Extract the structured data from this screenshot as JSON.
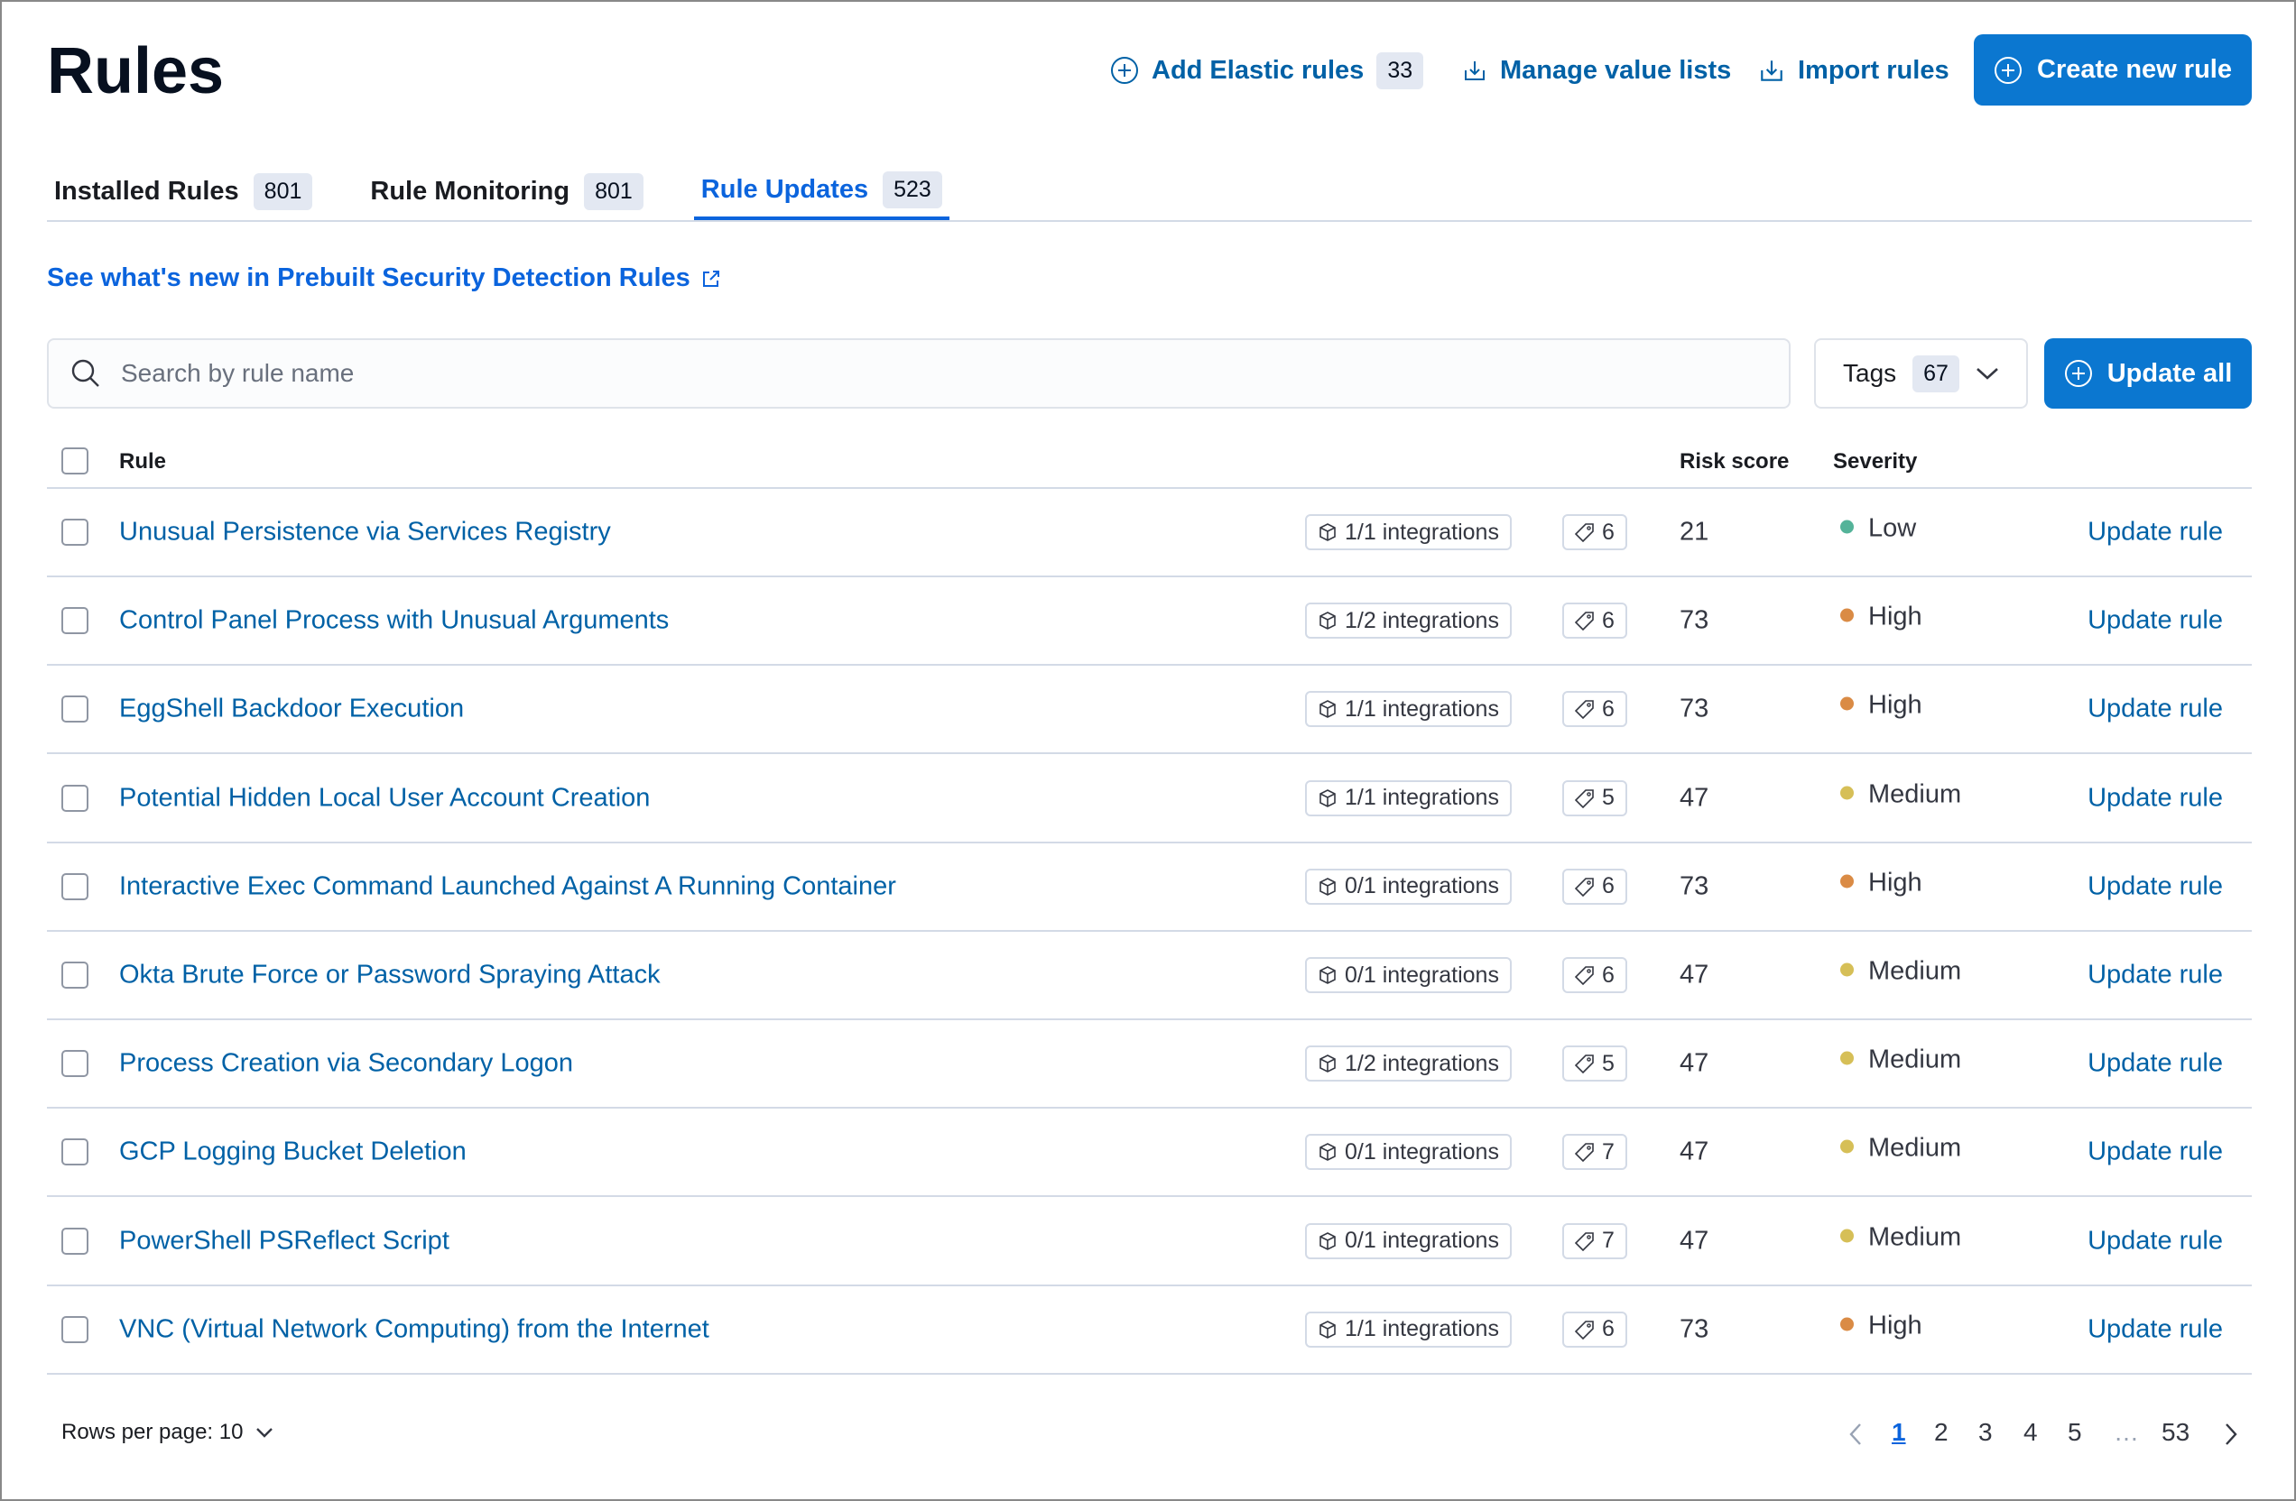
{
  "page_title": "Rules",
  "header": {
    "add_elastic_rules": "Add Elastic rules",
    "add_elastic_rules_count": "33",
    "manage_value_lists": "Manage value lists",
    "import_rules": "Import rules",
    "create_new_rule": "Create new rule"
  },
  "tabs": [
    {
      "label": "Installed Rules",
      "count": "801"
    },
    {
      "label": "Rule Monitoring",
      "count": "801"
    },
    {
      "label": "Rule Updates",
      "count": "523",
      "active": true
    }
  ],
  "whats_new_link": "See what's new in Prebuilt Security Detection Rules",
  "search": {
    "placeholder": "Search by rule name",
    "value": ""
  },
  "tags_filter": {
    "label": "Tags",
    "count": "67"
  },
  "update_all": "Update all",
  "table": {
    "columns": {
      "rule": "Rule",
      "risk_score": "Risk score",
      "severity": "Severity"
    },
    "rows": [
      {
        "name": "Unusual Persistence via Services Registry",
        "integrations": "1/1 integrations",
        "tags": "6",
        "risk": "21",
        "severity": "Low",
        "action": "Update rule"
      },
      {
        "name": "Control Panel Process with Unusual Arguments",
        "integrations": "1/2 integrations",
        "tags": "6",
        "risk": "73",
        "severity": "High",
        "action": "Update rule"
      },
      {
        "name": "EggShell Backdoor Execution",
        "integrations": "1/1 integrations",
        "tags": "6",
        "risk": "73",
        "severity": "High",
        "action": "Update rule"
      },
      {
        "name": "Potential Hidden Local User Account Creation",
        "integrations": "1/1 integrations",
        "tags": "5",
        "risk": "47",
        "severity": "Medium",
        "action": "Update rule"
      },
      {
        "name": "Interactive Exec Command Launched Against A Running Container",
        "integrations": "0/1 integrations",
        "tags": "6",
        "risk": "73",
        "severity": "High",
        "action": "Update rule"
      },
      {
        "name": "Okta Brute Force or Password Spraying Attack",
        "integrations": "0/1 integrations",
        "tags": "6",
        "risk": "47",
        "severity": "Medium",
        "action": "Update rule"
      },
      {
        "name": "Process Creation via Secondary Logon",
        "integrations": "1/2 integrations",
        "tags": "5",
        "risk": "47",
        "severity": "Medium",
        "action": "Update rule"
      },
      {
        "name": "GCP Logging Bucket Deletion",
        "integrations": "0/1 integrations",
        "tags": "7",
        "risk": "47",
        "severity": "Medium",
        "action": "Update rule"
      },
      {
        "name": "PowerShell PSReflect Script",
        "integrations": "0/1 integrations",
        "tags": "7",
        "risk": "47",
        "severity": "Medium",
        "action": "Update rule"
      },
      {
        "name": "VNC (Virtual Network Computing) from the Internet",
        "integrations": "1/1 integrations",
        "tags": "6",
        "risk": "73",
        "severity": "High",
        "action": "Update rule"
      }
    ]
  },
  "severity_colors": {
    "Low": "#54b399",
    "Medium": "#d6bf57",
    "High": "#da8b45"
  },
  "pagination": {
    "rows_per_page": "Rows per page: 10",
    "pages": [
      "1",
      "2",
      "3",
      "4",
      "5",
      "…",
      "53"
    ],
    "current": "1"
  }
}
